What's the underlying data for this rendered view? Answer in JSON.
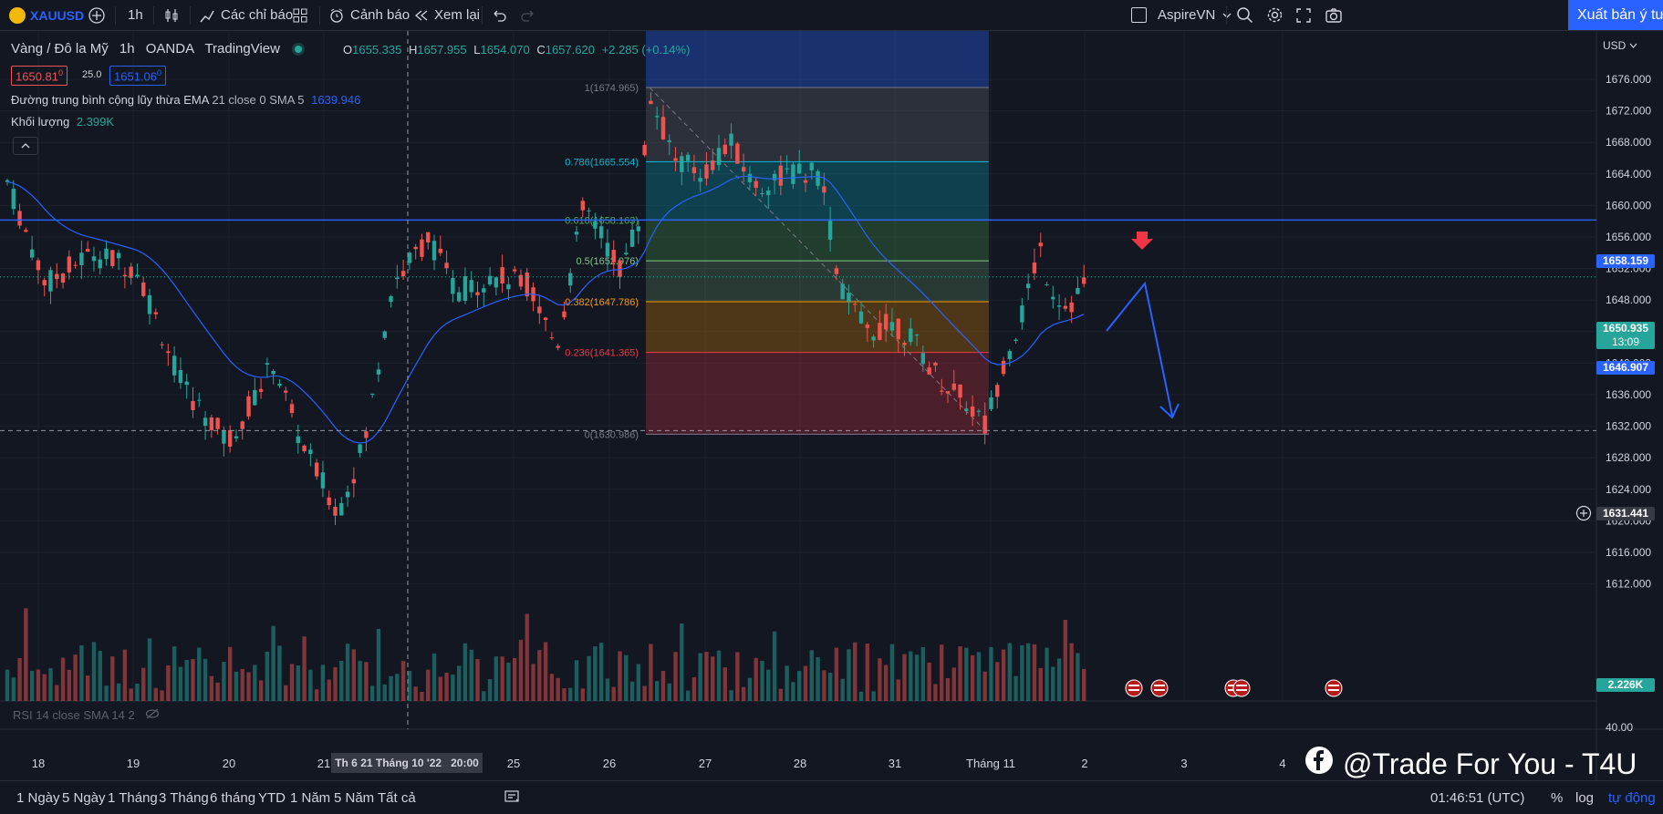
{
  "toolbar": {
    "symbol": "XAUUSD",
    "interval": "1h",
    "indicators_label": "Các chỉ báo",
    "alert_label": "Cảnh báo",
    "replay_label": "Xem lại",
    "account_name": "AspireVN",
    "publish_label": "Xuất bản ý tư"
  },
  "legend": {
    "title": "Vàng / Đô la Mỹ",
    "interval": "1h",
    "source": "OANDA",
    "platform": "TradingView",
    "o_label": "O",
    "o_value": "1655.335",
    "h_label": "H",
    "h_value": "1657.955",
    "l_label": "L",
    "l_value": "1654.070",
    "c_label": "C",
    "c_value": "1657.620",
    "change": "+2.285 (+0.14%)",
    "sell_price": "1650.81",
    "sell_sup": "0",
    "spread": "25.0",
    "buy_price": "1651.06",
    "buy_sup": "0",
    "ema_label": "Đường trung bình cộng lũy thừa EMA",
    "ema_params": "21 close 0 SMA 5",
    "ema_value": "1639.946",
    "volume_label": "Khối lượng",
    "volume_value": "2.399K",
    "rsi_label": "RSI 14 close SMA 14 2"
  },
  "price_axis": {
    "currency": "USD",
    "hline_label": "1658.159",
    "last_price": "1650.935",
    "countdown": "13:09",
    "ema_label": "1646.907",
    "crosshair_label": "1631.441",
    "volume_label": "2.226K",
    "rsi_label": "40.00"
  },
  "time_axis": {
    "crosshair_label": "Th 6 21 Tháng 10 '22",
    "crosshair_time": "20:00"
  },
  "bottom": {
    "ranges": [
      "1 Ngày",
      "5 Ngày",
      "1 Tháng",
      "3 Tháng",
      "6 tháng",
      "YTD",
      "1 Năm",
      "5 Năm",
      "Tất cả"
    ],
    "clock": "01:46:51 (UTC)",
    "pct": "%",
    "log": "log",
    "auto": "tự động"
  },
  "watermark": "@Trade For You - T4U",
  "colors": {
    "background": "#131722",
    "up": "#26a69a",
    "down": "#ef5350",
    "accent": "#2962ff",
    "ema": "#2962ff",
    "hline": "#2962ff"
  },
  "chart_data": {
    "type": "candlestick",
    "symbol": "XAUUSD",
    "y_range": [
      1612,
      1678
    ],
    "y_ticks": [
      1676,
      1672,
      1668,
      1664,
      1660,
      1656,
      1652,
      1648,
      1644,
      1640,
      1636,
      1632,
      1628,
      1624,
      1620,
      1616,
      1612
    ],
    "x_ticks": [
      "18",
      "19",
      "20",
      "21",
      "25",
      "26",
      "27",
      "28",
      "31",
      "Tháng 11",
      "2",
      "3",
      "4"
    ],
    "horizontal_line": 1658.159,
    "fibonacci": [
      {
        "label": "1(1674.965)",
        "level": 1674.965,
        "color": "#787b86"
      },
      {
        "label": "0.786(1665.554)",
        "level": 1665.554,
        "color": "#00bcd4"
      },
      {
        "label": "0.618(1658.163)",
        "level": 1658.163,
        "color": "#4caf50"
      },
      {
        "label": "0.5(1652.976)",
        "level": 1652.976,
        "color": "#81c784"
      },
      {
        "label": "0.382(1647.786)",
        "level": 1647.786,
        "color": "#ff9800"
      },
      {
        "label": "0.236(1641.365)",
        "level": 1641.365,
        "color": "#f23645"
      },
      {
        "label": "0(1630.986)",
        "level": 1630.986,
        "color": "#787b86"
      }
    ],
    "annotations": [
      "red-down-arrow",
      "projected-zigzag-path"
    ]
  }
}
